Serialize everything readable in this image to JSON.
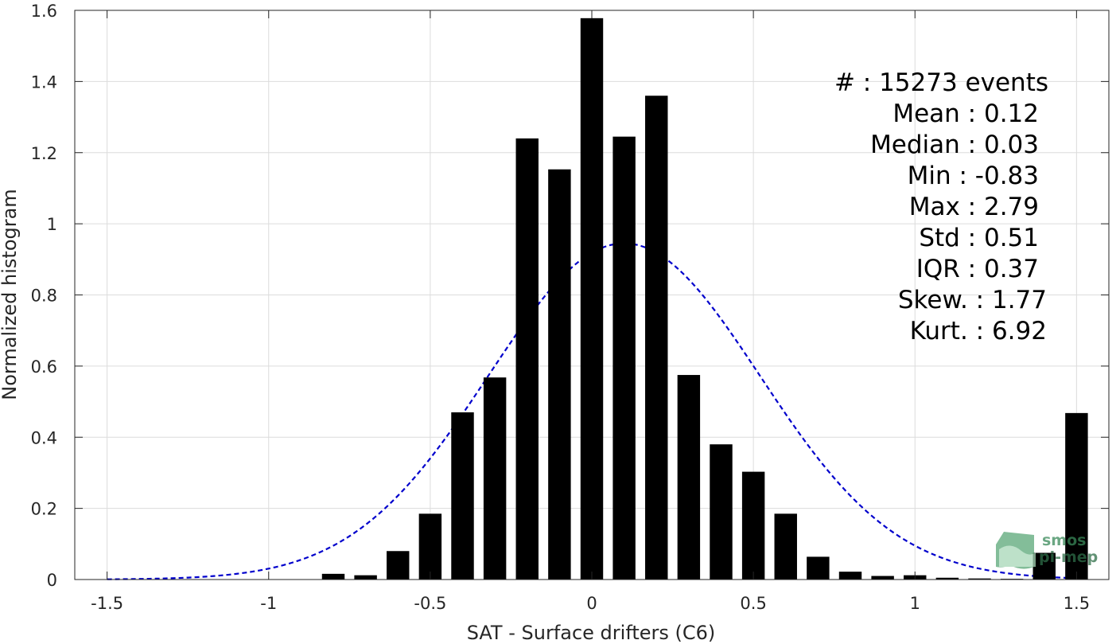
{
  "chart_data": {
    "type": "bar",
    "xlabel": "SAT - Surface drifters (C6)",
    "ylabel": "Normalized histogram",
    "xlim": [
      -1.6,
      1.6
    ],
    "ylim": [
      0,
      1.6
    ],
    "xticks": [
      -1.5,
      -1,
      -0.5,
      0,
      0.5,
      1,
      1.5
    ],
    "xtick_labels": [
      "-1.5",
      "-1",
      "-0.5",
      "0",
      "0.5",
      "1",
      "1.5"
    ],
    "yticks": [
      0,
      0.2,
      0.4,
      0.6,
      0.8,
      1,
      1.2,
      1.4,
      1.6
    ],
    "ytick_labels": [
      "0",
      "0.2",
      "0.4",
      "0.6",
      "0.8",
      "1",
      "1.2",
      "1.4",
      "1.6"
    ],
    "grid": true,
    "bar_width": 0.07,
    "bars": [
      {
        "x": -0.8,
        "y": 0.016
      },
      {
        "x": -0.7,
        "y": 0.012
      },
      {
        "x": -0.6,
        "y": 0.08
      },
      {
        "x": -0.5,
        "y": 0.185
      },
      {
        "x": -0.4,
        "y": 0.47
      },
      {
        "x": -0.3,
        "y": 0.568
      },
      {
        "x": -0.2,
        "y": 1.24
      },
      {
        "x": -0.1,
        "y": 1.153
      },
      {
        "x": 0.0,
        "y": 1.578
      },
      {
        "x": 0.1,
        "y": 1.245
      },
      {
        "x": 0.2,
        "y": 1.36
      },
      {
        "x": 0.3,
        "y": 0.575
      },
      {
        "x": 0.4,
        "y": 0.38
      },
      {
        "x": 0.5,
        "y": 0.303
      },
      {
        "x": 0.6,
        "y": 0.185
      },
      {
        "x": 0.7,
        "y": 0.064
      },
      {
        "x": 0.8,
        "y": 0.022
      },
      {
        "x": 0.9,
        "y": 0.01
      },
      {
        "x": 1.0,
        "y": 0.012
      },
      {
        "x": 1.1,
        "y": 0.005
      },
      {
        "x": 1.2,
        "y": 0.003
      },
      {
        "x": 1.3,
        "y": 0.002
      },
      {
        "x": 1.4,
        "y": 0.075
      },
      {
        "x": 1.5,
        "y": 0.468
      }
    ],
    "fit_curve": {
      "type": "normal",
      "mean": 0.1,
      "std": 0.42,
      "peak": 0.945,
      "color": "#0000cc",
      "style": "dashed",
      "x_range": [
        -1.5,
        1.5
      ]
    },
    "bar_color": "#000000"
  },
  "stats": [
    {
      "label": "#  : 15273 events"
    },
    {
      "label": "Mean : 0.12"
    },
    {
      "label": "Median : 0.03"
    },
    {
      "label": "Min : -0.83"
    },
    {
      "label": "Max : 2.79"
    },
    {
      "label": "Std : 0.51"
    },
    {
      "label": "IQR : 0.37"
    },
    {
      "label": "Skew. : 1.77"
    },
    {
      "label": "Kurt. : 6.92"
    }
  ],
  "logo": {
    "line1": "smos",
    "line2": "pi-mep",
    "color": "#3a8a5a"
  }
}
